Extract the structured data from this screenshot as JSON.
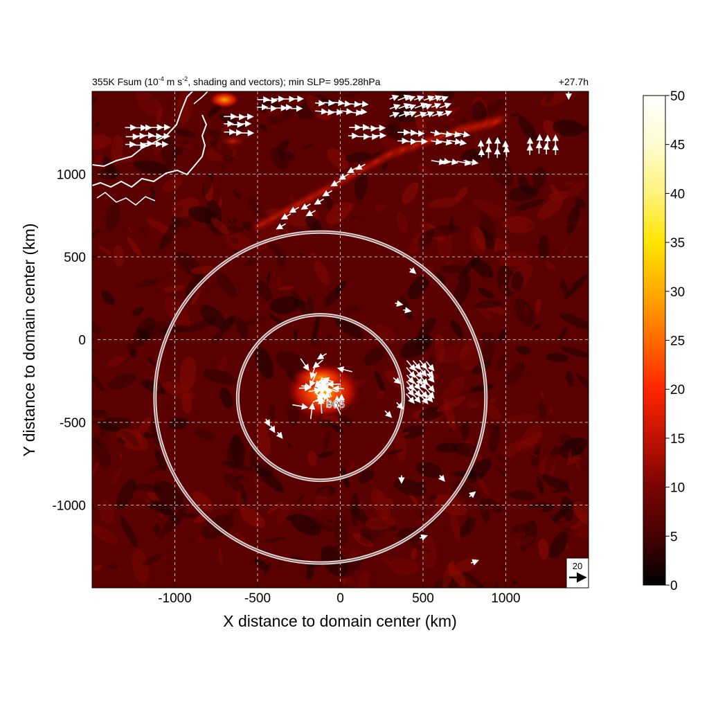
{
  "chart_data": {
    "type": "heatmap",
    "title_parts": {
      "prefix": "355K Fsum (10",
      "exponent": "-4",
      "middle": " m s",
      "exponent2": "-2",
      "suffix": ", shading and vectors); min SLP= 995.28hPa"
    },
    "forecast_hour": "+27.7h",
    "xlabel": "X distance to domain center (km)",
    "ylabel": "Y distance to domain center (km)",
    "xlim": [
      -1500,
      1500
    ],
    "ylim": [
      -1500,
      1500
    ],
    "xticks": [
      -1000,
      -500,
      0,
      500,
      1000
    ],
    "xtick_labels": [
      "-1000",
      "-500",
      "0",
      "500",
      "1000"
    ],
    "yticks": [
      -1000,
      -500,
      0,
      500,
      1000
    ],
    "ytick_labels": [
      "-1000",
      "-500",
      "0",
      "500",
      "1000"
    ],
    "grid": true,
    "colorbar": {
      "min": 0,
      "max": 50,
      "ticks": [
        0,
        5,
        10,
        15,
        20,
        25,
        30,
        35,
        40,
        45,
        50
      ],
      "tick_labels": [
        "0",
        "5",
        "10",
        "15",
        "20",
        "25",
        "30",
        "35",
        "40",
        "45",
        "50"
      ],
      "colors": [
        "#000000",
        "#3a0000",
        "#7a0400",
        "#b81000",
        "#ff2200",
        "#ff6a00",
        "#ffab00",
        "#ffe000",
        "#fff59a",
        "#ffffff"
      ]
    },
    "storm_center": {
      "x": -120,
      "y": -350,
      "label": "996"
    },
    "range_rings_km": [
      500,
      1000
    ],
    "reference_vector": {
      "magnitude": 20,
      "label": "20"
    },
    "features": {
      "jet_band": [
        [
          -470,
          700
        ],
        [
          -100,
          900
        ],
        [
          300,
          1120
        ],
        [
          700,
          1260
        ],
        [
          1000,
          1330
        ]
      ]
    }
  }
}
